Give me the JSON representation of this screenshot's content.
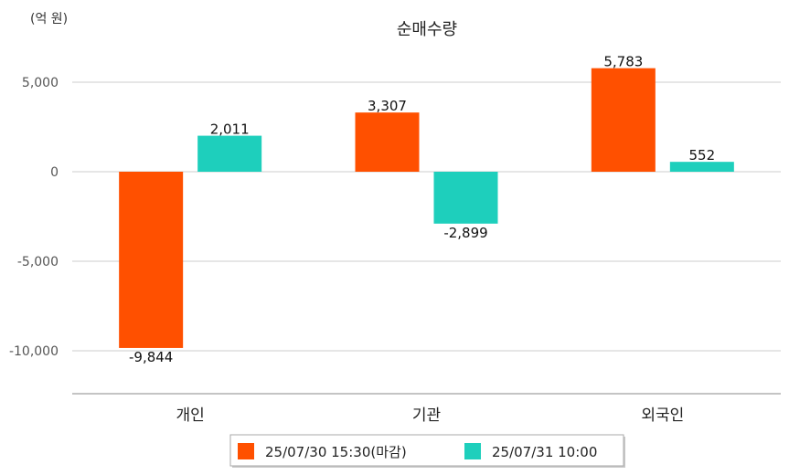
{
  "chart_data": {
    "type": "bar",
    "title": "순매수량",
    "unit_label": "(억 원)",
    "categories": [
      "개인",
      "기관",
      "외국인"
    ],
    "series": [
      {
        "name": "25/07/30 15:30(마감)",
        "color": "#ff5000",
        "values": [
          -9844,
          3307,
          5783
        ],
        "labels": [
          "-9,844",
          "3,307",
          "5,783"
        ]
      },
      {
        "name": "25/07/31 10:00",
        "color": "#1ecfbc",
        "values": [
          2011,
          -2899,
          552
        ],
        "labels": [
          "2,011",
          "-2,899",
          "552"
        ]
      }
    ],
    "yticks": [
      5000,
      0,
      -5000,
      -10000
    ],
    "ytick_labels": [
      "5,000",
      "0",
      "-5,000",
      "-10,000"
    ],
    "ylim": [
      -12500,
      7000
    ],
    "grid": true,
    "legend_position": "bottom"
  }
}
